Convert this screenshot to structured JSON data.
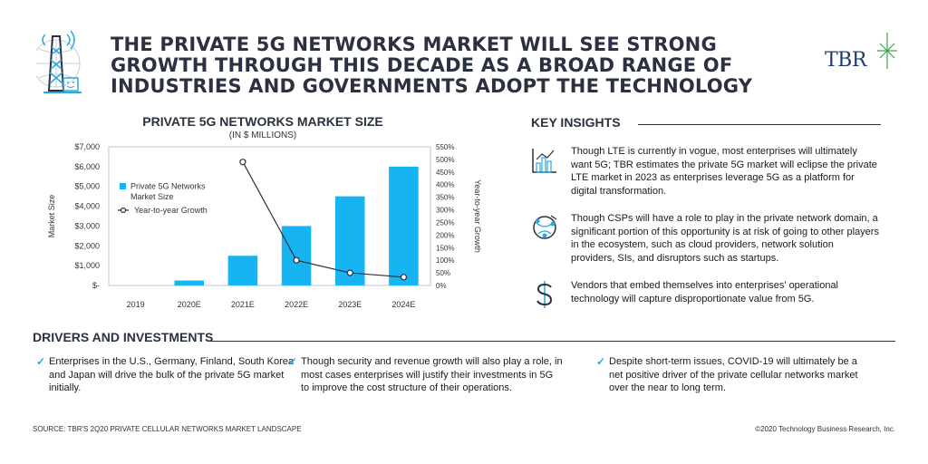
{
  "title": "THE PRIVATE 5G NETWORKS MARKET WILL SEE STRONG GROWTH THROUGH THIS DECADE AS A BROAD RANGE OF INDUSTRIES AND GOVERNMENTS ADOPT THE TECHNOLOGY",
  "logo_text": "TBR",
  "icons": {
    "header": "cell-tower-icon",
    "insight1": "bar-chart-icon",
    "insight2": "network-globe-icon",
    "insight3": "dollar-icon",
    "driver": "checkmark-icon"
  },
  "colors": {
    "bar": "#16b4f0",
    "line": "#2b3140",
    "accent": "#29a8df",
    "heading": "#2b3140",
    "logo": "#1d3c6e",
    "logo_star": "#3aa655"
  },
  "chart_data": {
    "type": "bar",
    "title": "PRIVATE 5G NETWORKS MARKET SIZE",
    "subtitle": "(IN $ MILLIONS)",
    "categories": [
      "2019",
      "2020E",
      "2021E",
      "2022E",
      "2023E",
      "2024E"
    ],
    "series": [
      {
        "name": "Private 5G Networks Market Size",
        "type": "bar",
        "axis": "left",
        "values": [
          0,
          250,
          1500,
          3000,
          4500,
          6000
        ]
      },
      {
        "name": "Year-to-year Growth",
        "type": "line",
        "axis": "right",
        "values": [
          null,
          null,
          490,
          100,
          50,
          33
        ]
      }
    ],
    "ylabel": "Market Size",
    "y2label": "Year-to-year Growth",
    "ylim": [
      0,
      7000
    ],
    "y2lim": [
      0,
      550
    ],
    "yticks": [
      "$-",
      "$1,000",
      "$2,000",
      "$3,000",
      "$4,000",
      "$5,000",
      "$6,000",
      "$7,000"
    ],
    "y2ticks": [
      "0%",
      "50%",
      "100%",
      "150%",
      "200%",
      "250%",
      "300%",
      "350%",
      "400%",
      "450%",
      "500%",
      "550%"
    ],
    "legend": [
      "Private 5G Networks Market Size",
      "Year-to-year Growth"
    ],
    "legend_placement": "top-left",
    "grid": false
  },
  "insights": {
    "heading": "KEY INSIGHTS",
    "items": [
      "Though LTE is currently in vogue, most enterprises will ultimately want 5G; TBR estimates the private 5G market will eclipse the private LTE market in 2023 as enterprises leverage 5G as a platform for digital transformation.",
      "Though CSPs will have a role to play in the private network domain, a significant portion of this opportunity is at risk of going to other players in the ecosystem, such as cloud providers, network solution providers, SIs, and disruptors such as startups.",
      "Vendors that embed themselves into enterprises' operational technology will capture disproportionate value from 5G."
    ]
  },
  "drivers": {
    "heading": "DRIVERS AND INVESTMENTS",
    "check": "✓",
    "items": [
      "Enterprises in the U.S., Germany, Finland, South Korea and Japan will drive the bulk of the private 5G market initially.",
      "Though security and revenue growth will also play a role, in most cases enterprises will justify their investments in 5G to improve the cost structure of their operations.",
      "Despite short-term issues, COVID-19 will ultimately be a net positive driver of the private cellular networks market over the near to long term."
    ]
  },
  "source": "SOURCE: TBR'S 2Q20 PRIVATE CELLULAR NETWORKS MARKET LANDSCAPE",
  "copyright": "©2020 Technology Business Research, Inc."
}
